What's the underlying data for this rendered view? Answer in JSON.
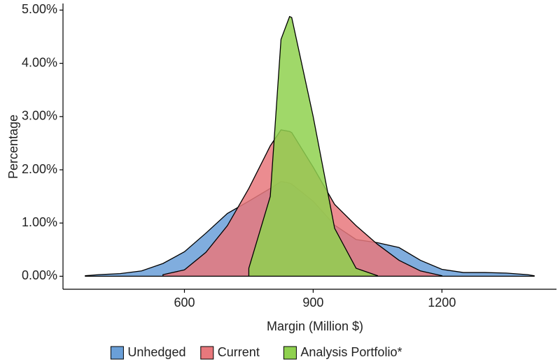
{
  "chart_data": {
    "type": "area",
    "x_label": "Margin (Million $)",
    "y_label": "Percentage",
    "x": [
      369,
      400,
      450,
      500,
      550,
      600,
      650,
      700,
      750,
      800,
      825,
      845,
      850,
      900,
      950,
      1000,
      1050,
      1100,
      1150,
      1200,
      1250,
      1300,
      1350,
      1400,
      1415
    ],
    "series": [
      {
        "name": "Unhedged",
        "color": "#6a9fd8",
        "values": [
          0.01,
          0.03,
          0.05,
          0.1,
          0.24,
          0.46,
          0.81,
          1.18,
          1.41,
          1.65,
          1.78,
          1.75,
          1.73,
          1.41,
          0.96,
          0.69,
          0.63,
          0.54,
          0.3,
          0.13,
          0.07,
          0.07,
          0.06,
          0.03,
          0.01
        ]
      },
      {
        "name": "Current",
        "color": "#e8787c",
        "values": [
          null,
          null,
          null,
          null,
          0.03,
          0.12,
          0.45,
          0.95,
          1.65,
          2.45,
          2.75,
          2.72,
          2.7,
          2.05,
          1.35,
          0.95,
          0.6,
          0.3,
          0.1,
          0.01,
          null,
          null,
          null,
          null,
          null
        ]
      },
      {
        "name": "Analysis Portfolio*",
        "color": "#8fd14f",
        "values": [
          null,
          null,
          null,
          null,
          null,
          null,
          null,
          null,
          0.15,
          1.5,
          4.45,
          4.88,
          4.86,
          3.0,
          0.9,
          0.15,
          0.01,
          null,
          null,
          null,
          null,
          null,
          null,
          null,
          null
        ]
      }
    ],
    "xlim": [
      317,
      1467
    ],
    "xticks": [
      600,
      900,
      1200
    ],
    "ylim": [
      -0.244,
      5.124
    ],
    "yticks": [
      {
        "value": 0,
        "label": "0.00%"
      },
      {
        "value": 1,
        "label": "1.00%"
      },
      {
        "value": 2,
        "label": "2.00%"
      },
      {
        "value": 3,
        "label": "3.00%"
      },
      {
        "value": 4,
        "label": "4.00%"
      },
      {
        "value": 5,
        "label": "5.00%"
      }
    ],
    "legend": "bottom"
  }
}
